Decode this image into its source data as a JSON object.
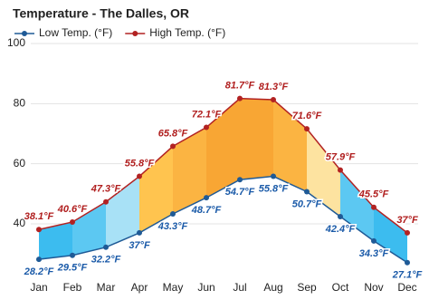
{
  "chart_data": {
    "type": "line",
    "title": "Temperature - The Dalles, OR",
    "categories": [
      "Jan",
      "Feb",
      "Mar",
      "Apr",
      "May",
      "Jun",
      "Jul",
      "Aug",
      "Sep",
      "Oct",
      "Nov",
      "Dec"
    ],
    "series": [
      {
        "name": "Low Temp. (°F)",
        "color": "#1f5a96",
        "values": [
          28.2,
          29.5,
          32.2,
          37,
          43.3,
          48.7,
          54.7,
          55.8,
          50.7,
          42.4,
          34.3,
          27.1
        ],
        "value_labels": [
          "28.2°F",
          "29.5°F",
          "32.2°F",
          "37°F",
          "43.3°F",
          "48.7°F",
          "54.7°F",
          "55.8°F",
          "50.7°F",
          "42.4°F",
          "34.3°F",
          "27.1°F"
        ]
      },
      {
        "name": "High Temp. (°F)",
        "color": "#b22222",
        "values": [
          38.1,
          40.6,
          47.3,
          55.8,
          65.8,
          72.1,
          81.7,
          81.3,
          71.6,
          57.9,
          45.5,
          37
        ],
        "value_labels": [
          "38.1°F",
          "40.6°F",
          "47.3°F",
          "55.8°F",
          "65.8°F",
          "72.1°F",
          "81.7°F",
          "81.3°F",
          "71.6°F",
          "57.9°F",
          "45.5°F",
          "37°F"
        ]
      }
    ],
    "band_colors": [
      "#3cbcef",
      "#5cc8f2",
      "#a8e1f6",
      "#ffc44f",
      "#fbb442",
      "#f8a634",
      "#f8a634",
      "#fbb442",
      "#fde3a0",
      "#5cc8f2",
      "#3cbcef"
    ],
    "ylim": [
      24,
      100
    ],
    "yticks": [
      40,
      60,
      80,
      100
    ],
    "grid": true,
    "legend": "top-left"
  }
}
